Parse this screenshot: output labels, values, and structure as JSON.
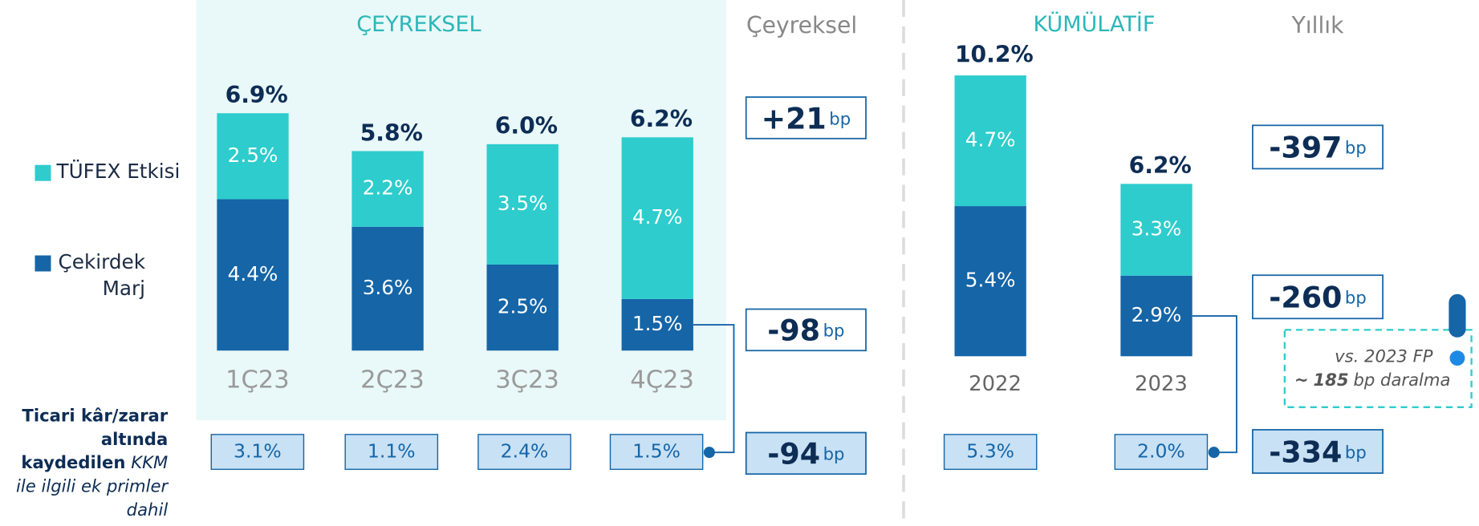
{
  "chart_data": [
    {
      "type": "bar",
      "stacked": true,
      "title": "ÇEYREKSEL",
      "change_title": "Çeyreksel",
      "categories": [
        "1Ç23",
        "2Ç23",
        "3Ç23",
        "4Ç23"
      ],
      "series": [
        {
          "name": "Çekirdek Marj",
          "color": "#1565a7",
          "values": [
            4.4,
            3.6,
            2.5,
            1.5
          ],
          "value_labels": [
            "4.4%",
            "3.6%",
            "2.5%",
            "1.5%"
          ]
        },
        {
          "name": "TÜFEX Etkisi",
          "color": "#2ecccd",
          "values": [
            2.5,
            2.2,
            3.5,
            4.7
          ],
          "value_labels": [
            "2.5%",
            "2.2%",
            "3.5%",
            "4.7%"
          ]
        }
      ],
      "totals": [
        6.9,
        5.8,
        6.0,
        6.2
      ],
      "total_labels": [
        "6.9%",
        "5.8%",
        "6.0%",
        "6.2%"
      ],
      "footnote_values": [
        "3.1%",
        "1.1%",
        "2.4%",
        "1.5%"
      ],
      "changes": [
        {
          "value": "+21",
          "unit": "bp"
        },
        {
          "value": "-98",
          "unit": "bp"
        },
        {
          "value": "-94",
          "unit": "bp"
        }
      ]
    },
    {
      "type": "bar",
      "stacked": true,
      "title": "KÜMÜLATİF",
      "change_title": "Yıllık",
      "categories": [
        "2022",
        "2023"
      ],
      "series": [
        {
          "color": "#1565a7",
          "values": [
            5.4,
            2.9
          ],
          "value_labels": [
            "5.4%",
            "2.9%"
          ]
        },
        {
          "color": "#2ecccd",
          "values": [
            4.7,
            3.3
          ],
          "value_labels": [
            "4.7%",
            "3.3%"
          ]
        }
      ],
      "totals": [
        10.2,
        6.2
      ],
      "total_labels": [
        "10.2%",
        "6.2%"
      ],
      "footnote_values": [
        "5.3%",
        "2.0%"
      ],
      "changes": [
        {
          "value": "-397",
          "unit": "bp"
        },
        {
          "value": "-260",
          "unit": "bp"
        },
        {
          "value": "-334",
          "unit": "bp"
        }
      ],
      "annotation": {
        "line1": "vs. 2023 FP",
        "prefix": "~",
        "number": "185",
        "suffix": "bp daralma"
      }
    }
  ],
  "note": {
    "bold": "Ticari kâr/zarar altında kaydedilen",
    "italic": "KKM ile ilgili ek primler dahil"
  }
}
